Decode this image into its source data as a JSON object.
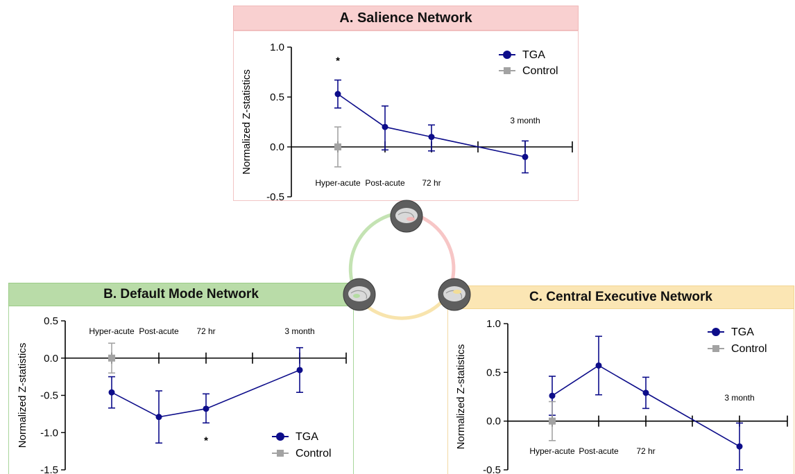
{
  "colors": {
    "tga": "#0d0d8a",
    "control": "#a3a3a3",
    "salience_banner": "#f9d0d0",
    "dmn_banner": "#b9dca8",
    "cen_banner": "#fbe6b4"
  },
  "legend": {
    "tga": "TGA",
    "control": "Control"
  },
  "panels": {
    "a": {
      "title": "A. Salience Network"
    },
    "b": {
      "title": "B. Default Mode Network"
    },
    "c": {
      "title": "C. Central Executive Network"
    }
  },
  "chart_data": [
    {
      "type": "line",
      "title": "A. Salience Network",
      "xlabel": "",
      "ylabel": "Normalized Z-statistics",
      "ylim": [
        -0.5,
        1.0
      ],
      "yticks": [
        "1.0",
        "0.5",
        "0.0",
        "-0.5"
      ],
      "categories": [
        "Hyper-acute",
        "Post-acute",
        "72 hr",
        "",
        "3 month"
      ],
      "category_labels": [
        {
          "text": "Hyper-acute",
          "placement": "below-axis"
        },
        {
          "text": "Post-acute",
          "placement": "below-axis"
        },
        {
          "text": "72 hr",
          "placement": "below-axis"
        },
        {
          "text": "3 month",
          "placement": "above-axis"
        }
      ],
      "significance": [
        {
          "category": "Hyper-acute",
          "text": "*"
        }
      ],
      "legend_position": "top-right",
      "series": [
        {
          "name": "TGA",
          "marker": "circle",
          "points": [
            {
              "x": "Hyper-acute",
              "y": 0.53,
              "err_low": 0.39,
              "err_high": 0.67
            },
            {
              "x": "Post-acute",
              "y": 0.2,
              "err_low": -0.03,
              "err_high": 0.41
            },
            {
              "x": "72 hr",
              "y": 0.1,
              "err_low": -0.04,
              "err_high": 0.22
            },
            {
              "x": "3 month",
              "y": -0.1,
              "err_low": -0.26,
              "err_high": 0.06
            }
          ]
        },
        {
          "name": "Control",
          "marker": "square",
          "points": [
            {
              "x": "Hyper-acute",
              "y": 0.0,
              "err_low": -0.2,
              "err_high": 0.2
            }
          ]
        }
      ]
    },
    {
      "type": "line",
      "title": "B. Default Mode Network",
      "xlabel": "",
      "ylabel": "Normalized Z-statistics",
      "ylim": [
        -1.5,
        0.5
      ],
      "yticks": [
        "0.5",
        "0.0",
        "-0.5",
        "-1.0",
        "-1.5"
      ],
      "categories": [
        "Hyper-acute",
        "Post-acute",
        "72 hr",
        "",
        "3 month"
      ],
      "category_labels": [
        {
          "text": "Hyper-acute",
          "placement": "above-axis"
        },
        {
          "text": "Post-acute",
          "placement": "above-axis"
        },
        {
          "text": "72 hr",
          "placement": "above-axis"
        },
        {
          "text": "3 month",
          "placement": "above-axis"
        }
      ],
      "significance": [
        {
          "category": "72 hr",
          "text": "*"
        }
      ],
      "legend_position": "bottom-right",
      "series": [
        {
          "name": "TGA",
          "marker": "circle",
          "points": [
            {
              "x": "Hyper-acute",
              "y": -0.46,
              "err_low": -0.67,
              "err_high": -0.25
            },
            {
              "x": "Post-acute",
              "y": -0.79,
              "err_low": -1.14,
              "err_high": -0.44
            },
            {
              "x": "72 hr",
              "y": -0.68,
              "err_low": -0.87,
              "err_high": -0.48
            },
            {
              "x": "3 month",
              "y": -0.16,
              "err_low": -0.46,
              "err_high": 0.14
            }
          ]
        },
        {
          "name": "Control",
          "marker": "square",
          "points": [
            {
              "x": "Hyper-acute",
              "y": 0.0,
              "err_low": -0.2,
              "err_high": 0.2
            }
          ]
        }
      ]
    },
    {
      "type": "line",
      "title": "C. Central Executive Network",
      "xlabel": "",
      "ylabel": "Normalized Z-statistics",
      "ylim": [
        -0.5,
        1.0
      ],
      "yticks": [
        "1.0",
        "0.5",
        "0.0",
        "-0.5"
      ],
      "categories": [
        "Hyper-acute",
        "Post-acute",
        "72 hr",
        "",
        "3 month"
      ],
      "category_labels": [
        {
          "text": "Hyper-acute",
          "placement": "below-axis"
        },
        {
          "text": "Post-acute",
          "placement": "below-axis"
        },
        {
          "text": "72 hr",
          "placement": "below-axis"
        },
        {
          "text": "3 month",
          "placement": "above-axis"
        }
      ],
      "significance": [],
      "legend_position": "top-right",
      "series": [
        {
          "name": "TGA",
          "marker": "circle",
          "points": [
            {
              "x": "Hyper-acute",
              "y": 0.26,
              "err_low": 0.06,
              "err_high": 0.46
            },
            {
              "x": "Post-acute",
              "y": 0.57,
              "err_low": 0.27,
              "err_high": 0.87
            },
            {
              "x": "72 hr",
              "y": 0.29,
              "err_low": 0.13,
              "err_high": 0.45
            },
            {
              "x": "3 month",
              "y": -0.26,
              "err_low": -0.5,
              "err_high": -0.02
            }
          ]
        },
        {
          "name": "Control",
          "marker": "square",
          "points": [
            {
              "x": "Hyper-acute",
              "y": 0.0,
              "err_low": -0.2,
              "err_high": 0.2
            }
          ]
        }
      ]
    }
  ]
}
